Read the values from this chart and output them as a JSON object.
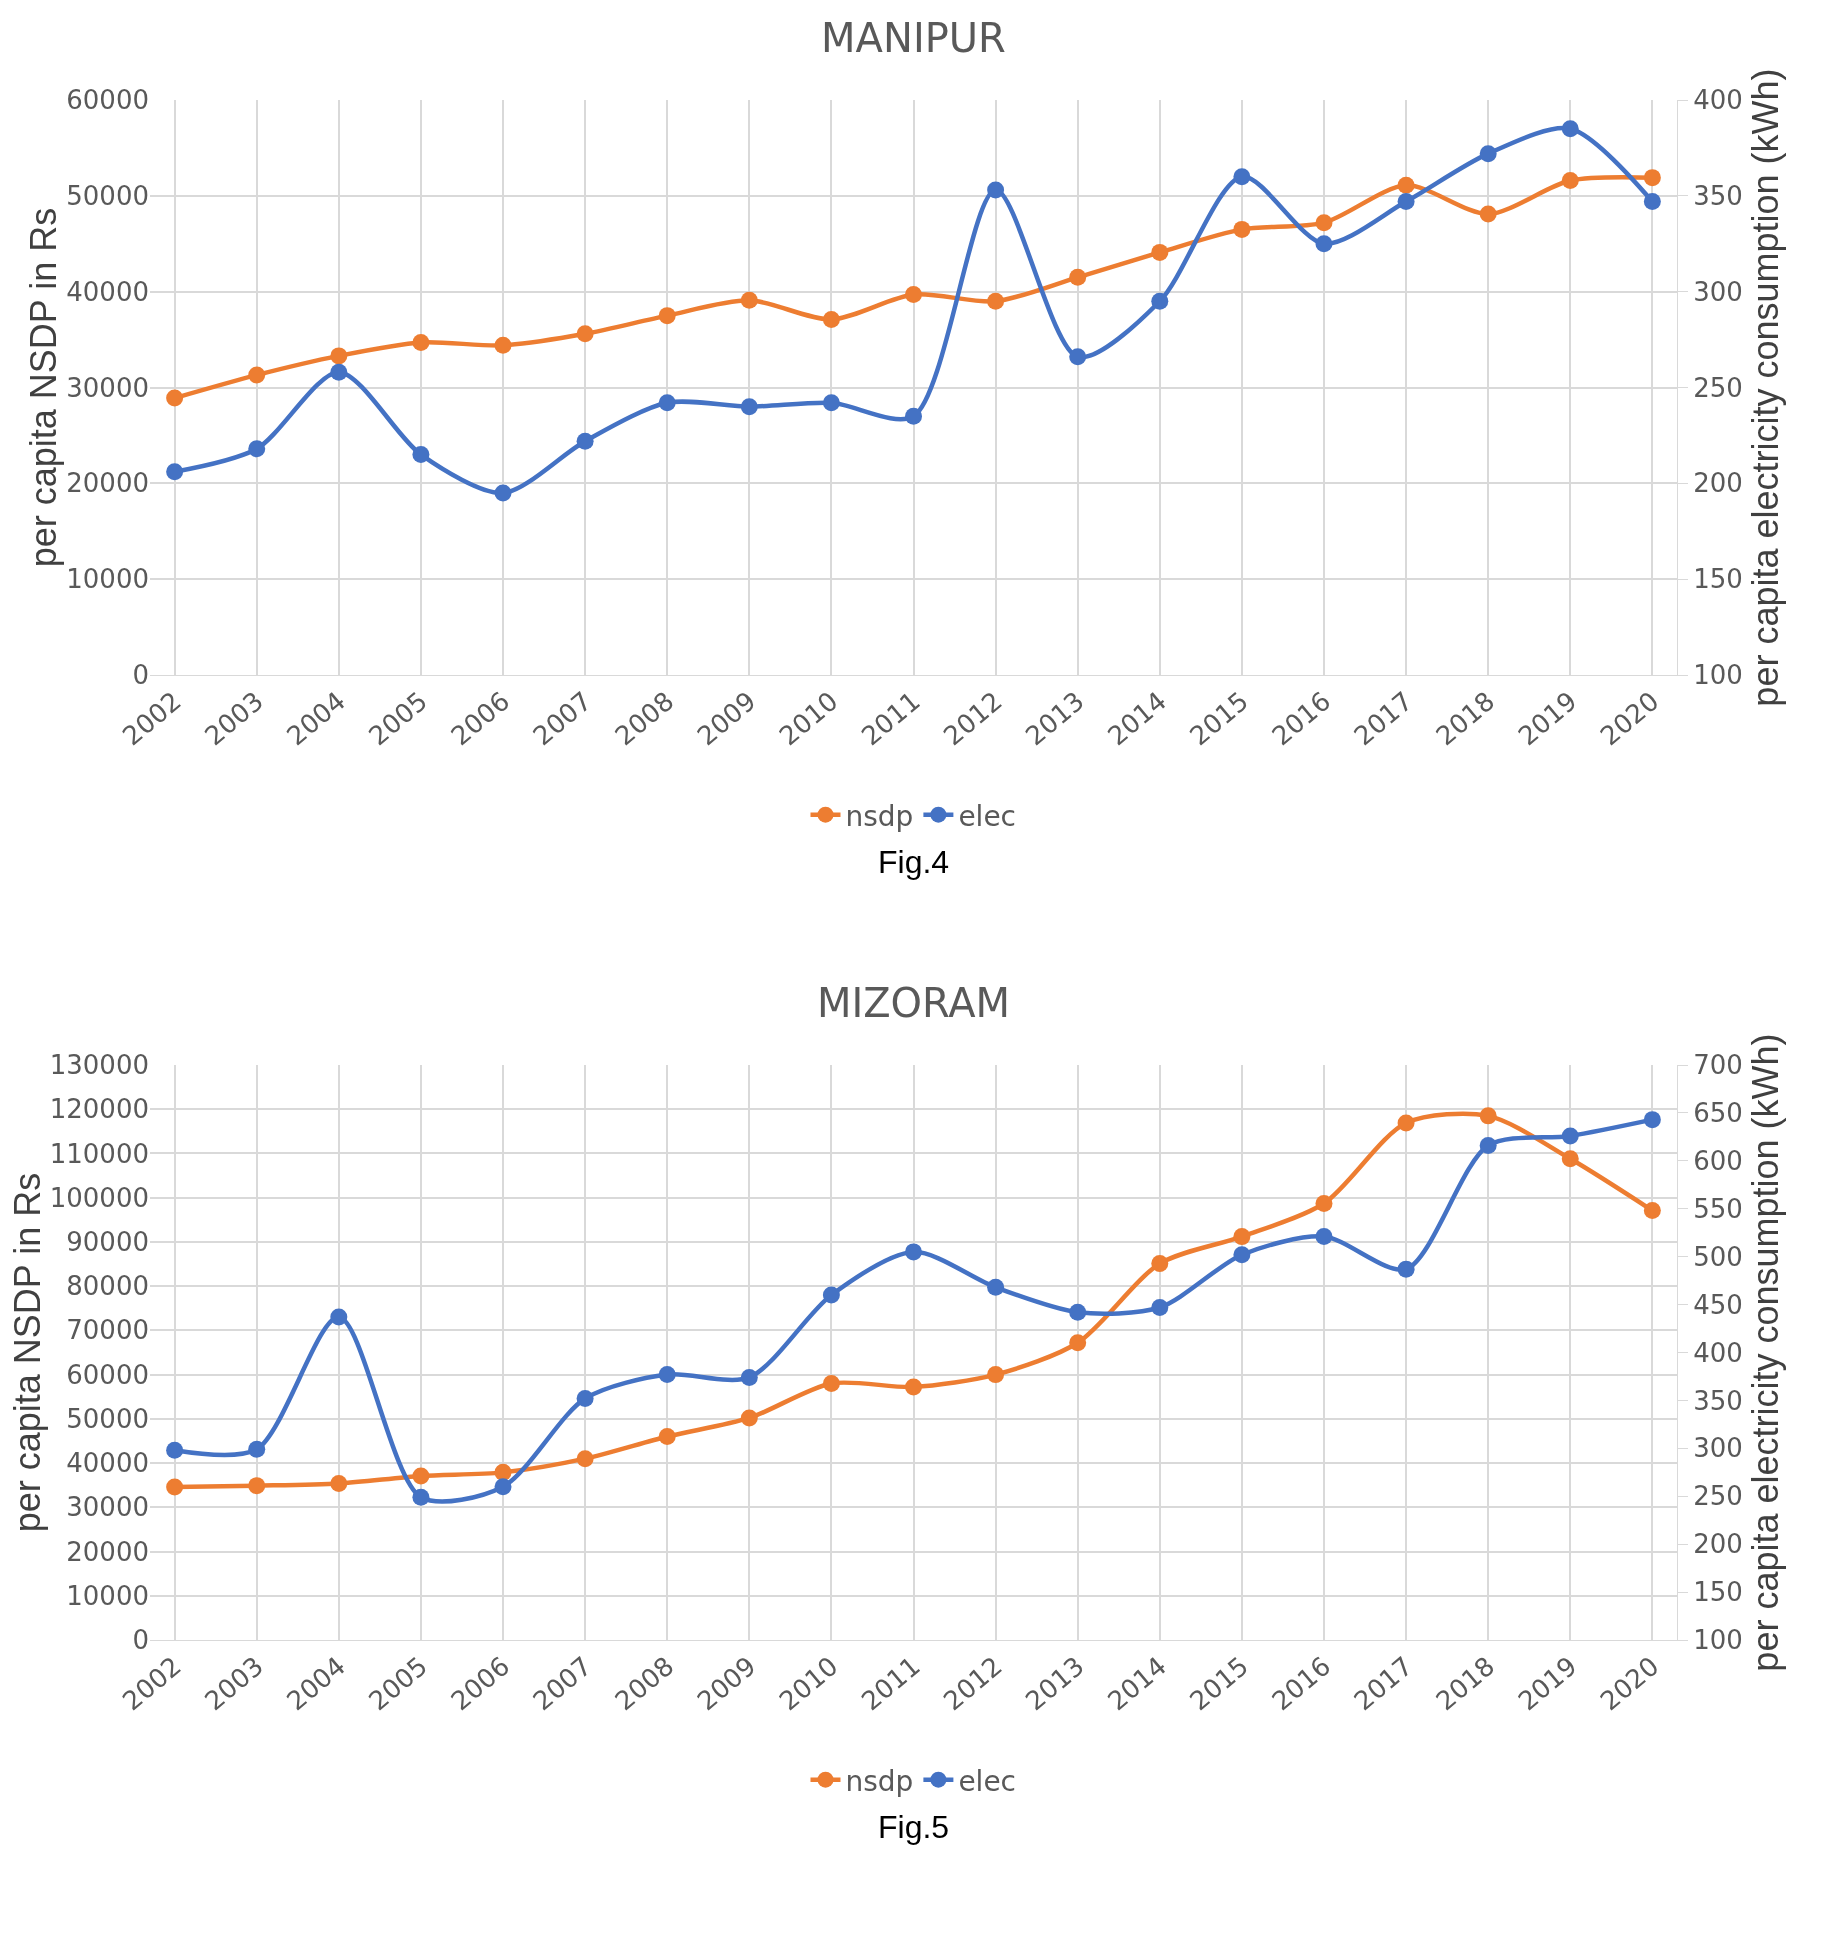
{
  "chart_data": [
    {
      "type": "line",
      "title": "MANIPUR",
      "ylabel": "per capita NSDP in Rs",
      "y2label": "per capita electricity consumption (kWh)",
      "annotations": [
        "Fig.4"
      ],
      "categories": [
        "2002",
        "2003",
        "2004",
        "2005",
        "2006",
        "2007",
        "2008",
        "2009",
        "2010",
        "2011",
        "2012",
        "2013",
        "2014",
        "2015",
        "2016",
        "2017",
        "2018",
        "2019",
        "2020"
      ],
      "series": [
        {
          "name": "nsdp",
          "color": "#ed7d31",
          "values": [
            28900,
            31300,
            33300,
            34700,
            34400,
            35600,
            37500,
            39100,
            37100,
            39700,
            39000,
            41500,
            44100,
            46500,
            47200,
            51100,
            48100,
            51600,
            51900
          ]
        },
        {
          "name": "elec",
          "color": "#4472c4",
          "axis": "y2",
          "values": [
            206,
            218,
            258,
            215,
            195,
            222,
            242,
            240,
            242,
            235,
            353,
            266,
            295,
            360,
            325,
            347,
            372,
            385,
            347
          ]
        }
      ],
      "ylim": [
        0,
        60000
      ],
      "yticks": [
        0,
        10000,
        20000,
        30000,
        40000,
        50000,
        60000
      ],
      "y2lim": [
        100,
        400
      ],
      "y2ticks": [
        100,
        150,
        200,
        250,
        300,
        350,
        400
      ],
      "grid": true,
      "legend": "bottom",
      "marker": "circle",
      "line_style": "solid"
    },
    {
      "type": "line",
      "title": "MIZORAM",
      "ylabel": "per capita NSDP in Rs",
      "y2label": "per capita electricity consumption (kWh)",
      "annotations": [
        "Fig.5"
      ],
      "categories": [
        "2002",
        "2003",
        "2004",
        "2005",
        "2006",
        "2007",
        "2008",
        "2009",
        "2010",
        "2011",
        "2012",
        "2013",
        "2014",
        "2015",
        "2016",
        "2017",
        "2018",
        "2019",
        "2020"
      ],
      "series": [
        {
          "name": "nsdp",
          "color": "#ed7d31",
          "values": [
            34600,
            34900,
            35400,
            37100,
            37900,
            41000,
            46000,
            50200,
            58000,
            57200,
            60000,
            67200,
            85100,
            91200,
            98700,
            116900,
            118500,
            108800,
            97100
          ]
        },
        {
          "name": "elec",
          "color": "#4472c4",
          "axis": "y2",
          "values": [
            298,
            299,
            437,
            249,
            260,
            352,
            377,
            374,
            460,
            505,
            468,
            442,
            447,
            502,
            521,
            487,
            616,
            626,
            643
          ]
        }
      ],
      "ylim": [
        0,
        130000
      ],
      "yticks": [
        0,
        10000,
        20000,
        30000,
        40000,
        50000,
        60000,
        70000,
        80000,
        90000,
        100000,
        110000,
        120000,
        130000
      ],
      "y2lim": [
        100,
        700
      ],
      "y2ticks": [
        100,
        150,
        200,
        250,
        300,
        350,
        400,
        450,
        500,
        550,
        600,
        650,
        700
      ],
      "grid": true,
      "legend": "bottom",
      "marker": "circle",
      "line_style": "solid"
    }
  ]
}
